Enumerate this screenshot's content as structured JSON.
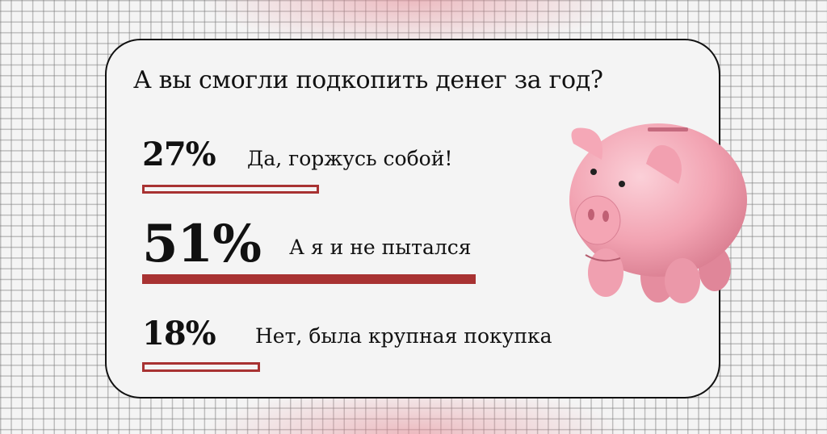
{
  "chart_data": {
    "type": "bar",
    "orientation": "horizontal",
    "title": "А вы смогли подкопить денег за год?",
    "categories": [
      "Да, горжусь собой!",
      "А я и не пытался",
      "Нет, была крупная покупка"
    ],
    "values": [
      27,
      51,
      18
    ],
    "value_labels": [
      "27%",
      "51%",
      "18%"
    ],
    "unit": "%",
    "colors": {
      "bar": "#a83232",
      "text": "#111111"
    }
  },
  "illustration": {
    "icon": "piggy-bank-icon"
  }
}
